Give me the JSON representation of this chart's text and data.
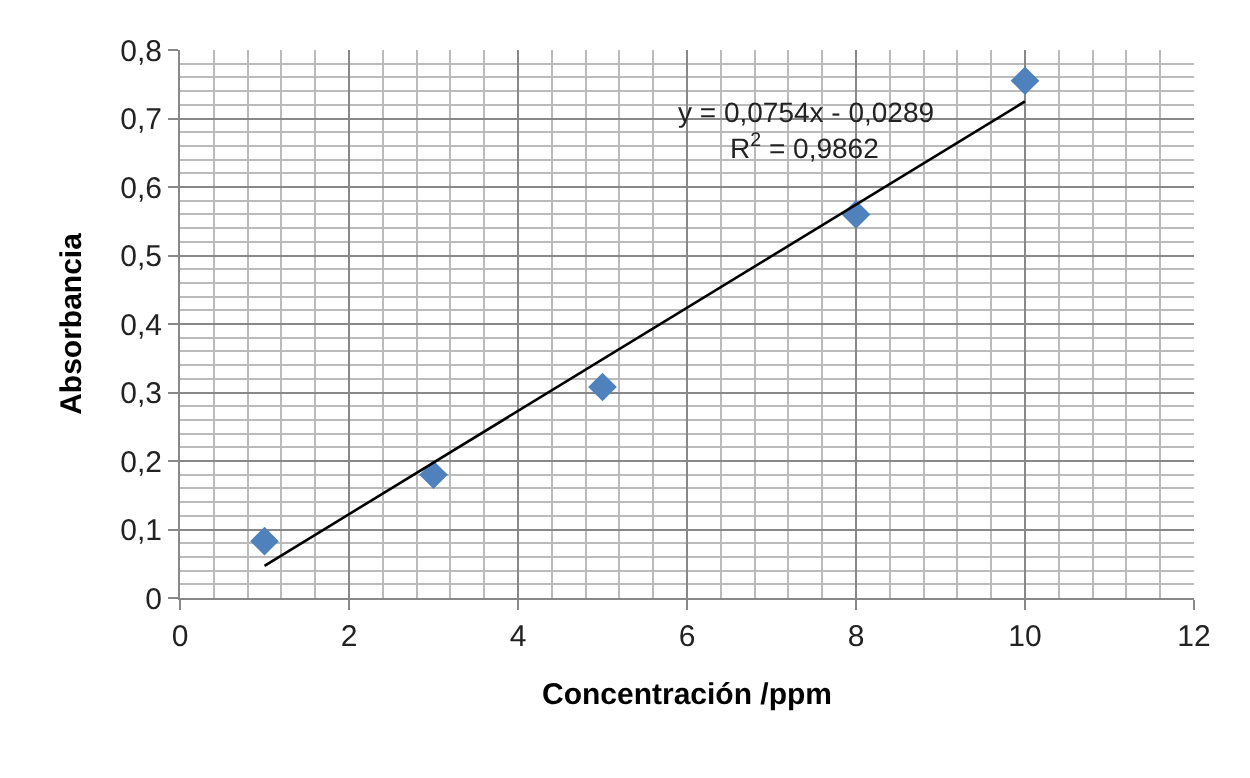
{
  "chart_data": {
    "type": "scatter",
    "xlabel": "Concentración /ppm",
    "ylabel": "Absorbancia",
    "series": [
      {
        "color": "#4f81bd",
        "marker": "diamond",
        "x": [
          1,
          3,
          5,
          8,
          10
        ],
        "values": [
          0.083,
          0.18,
          0.308,
          0.56,
          0.755
        ]
      },
      {
        "type": "line",
        "color": "#000000",
        "marker": "none",
        "x": [
          1,
          10
        ],
        "values": [
          0.047,
          0.725
        ]
      }
    ],
    "annotations": [
      "y = 0,0754x - 0,0289",
      "R$^{2}$ = 0,9862"
    ],
    "xlim": [
      0,
      12
    ],
    "xticks": [
      0,
      2,
      4,
      6,
      8,
      10,
      12
    ],
    "ylim": [
      0,
      0.8
    ],
    "yticks": [
      0,
      {
        "value": 0.1,
        "label": "0,1"
      },
      {
        "value": 0.2,
        "label": "0,2"
      },
      {
        "value": 0.3,
        "label": "0,3"
      },
      {
        "value": 0.4,
        "label": "0,4"
      },
      {
        "value": 0.5,
        "label": "0,5"
      },
      {
        "value": 0.6,
        "label": "0,6"
      },
      {
        "value": 0.7,
        "label": "0,7"
      },
      {
        "value": 0.8,
        "label": "0,8"
      }
    ],
    "grid": true
  }
}
